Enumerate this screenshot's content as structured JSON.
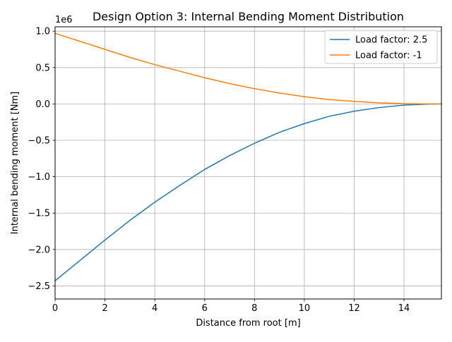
{
  "chart_data": {
    "type": "line",
    "title": "Design Option 3: Internal Bending Moment Distribution",
    "xlabel": "Distance from root [m]",
    "ylabel": "Internal bending moment [Nm]",
    "y_offset_label": "1e6",
    "xlim": [
      0,
      15.5
    ],
    "ylim": [
      -2.68,
      1.06
    ],
    "grid": true,
    "legend_placement": "top-right",
    "x_ticks": [
      0,
      2,
      4,
      6,
      8,
      10,
      12,
      14
    ],
    "x_tick_labels": [
      "0",
      "2",
      "4",
      "6",
      "8",
      "10",
      "12",
      "14"
    ],
    "y_ticks": [
      -2.5,
      -2.0,
      -1.5,
      -1.0,
      -0.5,
      0.0,
      0.5,
      1.0
    ],
    "y_tick_labels": [
      "−2.5",
      "−2.0",
      "−1.5",
      "−1.0",
      "−0.5",
      "0.0",
      "0.5",
      "1.0"
    ],
    "x": [
      0,
      1,
      2,
      3,
      4,
      5,
      6,
      7,
      8,
      9,
      10,
      11,
      12,
      13,
      14,
      15,
      15.5
    ],
    "series": [
      {
        "name": "Load factor: 2.5",
        "color": "#1f77b4",
        "values": [
          -2.43,
          -2.15,
          -1.87,
          -1.6,
          -1.35,
          -1.12,
          -0.9,
          -0.71,
          -0.54,
          -0.39,
          -0.27,
          -0.17,
          -0.1,
          -0.05,
          -0.015,
          -0.002,
          0.0
        ]
      },
      {
        "name": "Load factor: -1",
        "color": "#ff7f0e",
        "values": [
          0.97,
          0.86,
          0.75,
          0.64,
          0.54,
          0.45,
          0.36,
          0.28,
          0.21,
          0.15,
          0.1,
          0.06,
          0.035,
          0.015,
          0.004,
          0.0005,
          0.0
        ]
      }
    ]
  }
}
